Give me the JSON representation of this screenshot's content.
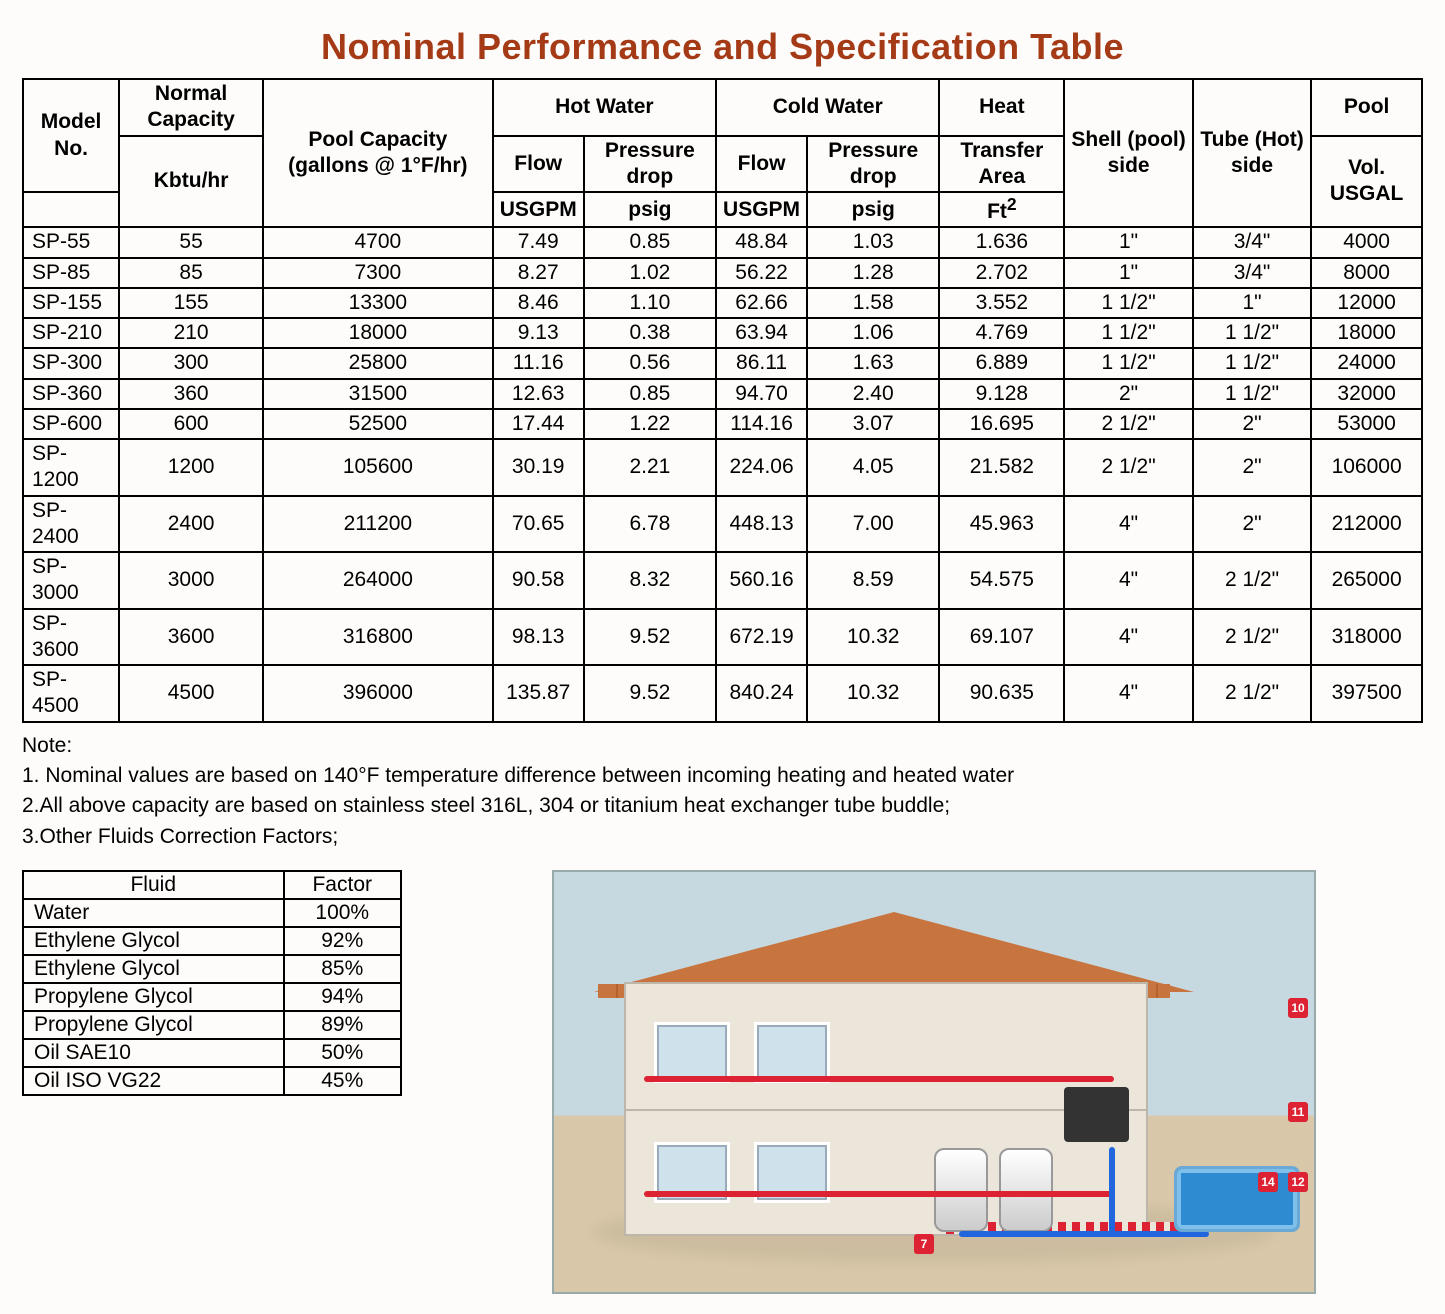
{
  "title": "Nominal Performance and Specification Table",
  "spec_table": {
    "header": {
      "model_no": "Model No.",
      "normal_capacity": "Normal Capacity",
      "normal_capacity_unit": "Kbtu/hr",
      "pool_capacity": "Pool Capacity (gallons @ 1°F/hr)",
      "hot_water": "Hot Water",
      "cold_water": "Cold Water",
      "flow": "Flow",
      "pressure_drop": "Pressure drop",
      "heat": "Heat",
      "transfer_area": "Transfer Area",
      "ft2": "Ft",
      "ft2_sup": "2",
      "shell_side": "Shell (pool) side",
      "tube_side": "Tube (Hot) side",
      "pool": "Pool",
      "pool_vol": "Vol. USGAL",
      "usgpm": "USGPM",
      "psig": "psig"
    },
    "rows": [
      {
        "model": "SP-55",
        "cap": "55",
        "pool_cap": "4700",
        "hw_flow": "7.49",
        "hw_pd": "0.85",
        "cw_flow": "48.84",
        "cw_pd": "1.03",
        "area": "1.636",
        "shell": "1\"",
        "tube": "3/4\"",
        "pool_vol": "4000"
      },
      {
        "model": "SP-85",
        "cap": "85",
        "pool_cap": "7300",
        "hw_flow": "8.27",
        "hw_pd": "1.02",
        "cw_flow": "56.22",
        "cw_pd": "1.28",
        "area": "2.702",
        "shell": "1\"",
        "tube": "3/4\"",
        "pool_vol": "8000"
      },
      {
        "model": "SP-155",
        "cap": "155",
        "pool_cap": "13300",
        "hw_flow": "8.46",
        "hw_pd": "1.10",
        "cw_flow": "62.66",
        "cw_pd": "1.58",
        "area": "3.552",
        "shell": "1 1/2\"",
        "tube": "1\"",
        "pool_vol": "12000"
      },
      {
        "model": "SP-210",
        "cap": "210",
        "pool_cap": "18000",
        "hw_flow": "9.13",
        "hw_pd": "0.38",
        "cw_flow": "63.94",
        "cw_pd": "1.06",
        "area": "4.769",
        "shell": "1 1/2\"",
        "tube": "1 1/2\"",
        "pool_vol": "18000"
      },
      {
        "model": "SP-300",
        "cap": "300",
        "pool_cap": "25800",
        "hw_flow": "11.16",
        "hw_pd": "0.56",
        "cw_flow": "86.11",
        "cw_pd": "1.63",
        "area": "6.889",
        "shell": "1 1/2\"",
        "tube": "1 1/2\"",
        "pool_vol": "24000"
      },
      {
        "model": "SP-360",
        "cap": "360",
        "pool_cap": "31500",
        "hw_flow": "12.63",
        "hw_pd": "0.85",
        "cw_flow": "94.70",
        "cw_pd": "2.40",
        "area": "9.128",
        "shell": "2\"",
        "tube": "1 1/2\"",
        "pool_vol": "32000"
      },
      {
        "model": "SP-600",
        "cap": "600",
        "pool_cap": "52500",
        "hw_flow": "17.44",
        "hw_pd": "1.22",
        "cw_flow": "114.16",
        "cw_pd": "3.07",
        "area": "16.695",
        "shell": "2 1/2\"",
        "tube": "2\"",
        "pool_vol": "53000"
      },
      {
        "model": "SP-1200",
        "cap": "1200",
        "pool_cap": "105600",
        "hw_flow": "30.19",
        "hw_pd": "2.21",
        "cw_flow": "224.06",
        "cw_pd": "4.05",
        "area": "21.582",
        "shell": "2 1/2\"",
        "tube": "2\"",
        "pool_vol": "106000"
      },
      {
        "model": "SP-2400",
        "cap": "2400",
        "pool_cap": "211200",
        "hw_flow": "70.65",
        "hw_pd": "6.78",
        "cw_flow": "448.13",
        "cw_pd": "7.00",
        "area": "45.963",
        "shell": "4\"",
        "tube": "2\"",
        "pool_vol": "212000"
      },
      {
        "model": "SP-3000",
        "cap": "3000",
        "pool_cap": "264000",
        "hw_flow": "90.58",
        "hw_pd": "8.32",
        "cw_flow": "560.16",
        "cw_pd": "8.59",
        "area": "54.575",
        "shell": "4\"",
        "tube": "2 1/2\"",
        "pool_vol": "265000"
      },
      {
        "model": "SP-3600",
        "cap": "3600",
        "pool_cap": "316800",
        "hw_flow": "98.13",
        "hw_pd": "9.52",
        "cw_flow": "672.19",
        "cw_pd": "10.32",
        "area": "69.107",
        "shell": "4\"",
        "tube": "2 1/2\"",
        "pool_vol": "318000"
      },
      {
        "model": "SP-4500",
        "cap": "4500",
        "pool_cap": "396000",
        "hw_flow": "135.87",
        "hw_pd": "9.52",
        "cw_flow": "840.24",
        "cw_pd": "10.32",
        "area": "90.635",
        "shell": "4\"",
        "tube": "2 1/2\"",
        "pool_vol": "397500"
      }
    ]
  },
  "notes": {
    "heading": "Note:",
    "items": [
      "1. Nominal values are based on 140°F temperature difference between incoming heating and heated water",
      "2.All above capacity are based on stainless steel 316L, 304 or titanium heat exchanger tube buddle;",
      "3.Other Fluids Correction Factors;"
    ]
  },
  "factor_table": {
    "col_fluid": "Fluid",
    "col_factor": "Factor",
    "rows": [
      {
        "fluid": "Water",
        "factor": "100%"
      },
      {
        "fluid": "Ethylene Glycol",
        "factor": "92%"
      },
      {
        "fluid": "Ethylene Glycol",
        "factor": "85%"
      },
      {
        "fluid": "Propylene Glycol",
        "factor": "94%"
      },
      {
        "fluid": "Propylene Glycol",
        "factor": "89%"
      },
      {
        "fluid": "Oil SAE10",
        "factor": "50%"
      },
      {
        "fluid": "Oil ISO VG22",
        "factor": "45%"
      }
    ]
  },
  "colors": {
    "title": "#a53a17",
    "border": "#000000",
    "roof": "#c7743f",
    "wall": "#ece6da",
    "pool_water": "#2e8bd1",
    "pipe_hot": "#d23",
    "pipe_cold": "#26d",
    "sky": "#c7d9e0",
    "ground": "#d8c7a8"
  }
}
